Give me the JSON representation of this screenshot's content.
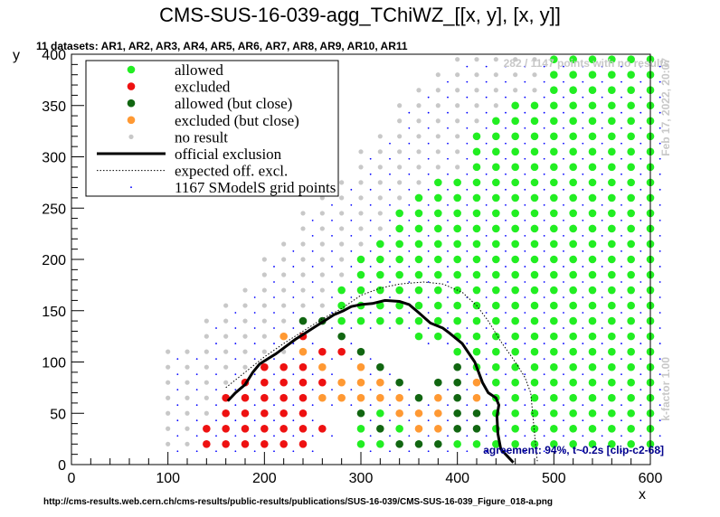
{
  "chart_data": {
    "type": "scatter",
    "title": "CMS-SUS-16-039-agg_TChiWZ_[[x, y], [x, y]]",
    "subtitle": "11 datasets: AR1, AR2, AR3, AR4, AR5, AR6, AR7, AR8, AR9, AR10, AR11",
    "xlabel": "x",
    "ylabel": "y",
    "xlim": [
      0,
      600
    ],
    "ylim": [
      0,
      400
    ],
    "xticks": [
      0,
      100,
      200,
      300,
      400,
      500,
      600
    ],
    "yticks": [
      0,
      50,
      100,
      150,
      200,
      250,
      300,
      350,
      400
    ],
    "legend_position": "top-left",
    "legend": [
      {
        "label": "allowed",
        "kind": "dot",
        "color": "#22ee22"
      },
      {
        "label": "excluded",
        "kind": "dot",
        "color": "#ee1111"
      },
      {
        "label": "allowed (but close)",
        "kind": "dot",
        "color": "#116611"
      },
      {
        "label": "excluded (but close)",
        "kind": "dot",
        "color": "#ff9933"
      },
      {
        "label": "no result",
        "kind": "smalldot",
        "color": "#c8c8c8"
      },
      {
        "label": "official exclusion",
        "kind": "line",
        "color": "#000000"
      },
      {
        "label": "expected off. excl.",
        "kind": "dotted",
        "color": "#000000"
      },
      {
        "label": "1167 SModelS grid points",
        "kind": "tinydot",
        "color": "#0000ff"
      }
    ],
    "annotations": {
      "no_results": "282 / 1147 points with no results",
      "date": "Feb 17, 2022, 20:07",
      "kfactor": "k-factor 1.00",
      "agreement": "agreement: 94%, t~0.2s [clip-c2-68]",
      "url": "http://cms-results.web.cern.ch/cms-results/public-results/publications/SUS-16-039/CMS-SUS-16-039_Figure_018-a.png"
    },
    "official_exclusion": [
      [
        162,
        62
      ],
      [
        170,
        70
      ],
      [
        180,
        78
      ],
      [
        188,
        90
      ],
      [
        195,
        98
      ],
      [
        205,
        104
      ],
      [
        212,
        108
      ],
      [
        222,
        115
      ],
      [
        232,
        122
      ],
      [
        242,
        128
      ],
      [
        252,
        134
      ],
      [
        262,
        140
      ],
      [
        272,
        146
      ],
      [
        282,
        150
      ],
      [
        290,
        154
      ],
      [
        300,
        156
      ],
      [
        312,
        157
      ],
      [
        325,
        160
      ],
      [
        340,
        159
      ],
      [
        350,
        156
      ],
      [
        360,
        148
      ],
      [
        372,
        138
      ],
      [
        385,
        133
      ],
      [
        392,
        128
      ],
      [
        405,
        118
      ],
      [
        418,
        100
      ],
      [
        426,
        80
      ],
      [
        432,
        70
      ],
      [
        440,
        65
      ],
      [
        443,
        58
      ],
      [
        441,
        47
      ],
      [
        442,
        30
      ],
      [
        445,
        15
      ],
      [
        452,
        8
      ],
      [
        458,
        2
      ]
    ],
    "expected_exclusion": [
      [
        160,
        75
      ],
      [
        180,
        90
      ],
      [
        200,
        105
      ],
      [
        220,
        118
      ],
      [
        240,
        130
      ],
      [
        260,
        142
      ],
      [
        280,
        152
      ],
      [
        300,
        165
      ],
      [
        320,
        172
      ],
      [
        340,
        176
      ],
      [
        365,
        178
      ],
      [
        385,
        176
      ],
      [
        405,
        168
      ],
      [
        420,
        155
      ],
      [
        432,
        140
      ],
      [
        445,
        120
      ],
      [
        460,
        100
      ],
      [
        470,
        85
      ],
      [
        476,
        70
      ],
      [
        478,
        50
      ],
      [
        480,
        30
      ],
      [
        482,
        10
      ],
      [
        483,
        2
      ]
    ],
    "rows": [
      {
        "y": 20,
        "allowed_min": 300,
        "allowed_max": 600,
        "excluded_min": 140,
        "excluded_max": 250,
        "nr_min": 100,
        "nr_max": 130
      },
      {
        "y": 35,
        "allowed_min": 300,
        "allowed_max": 600,
        "excluded_min": 140,
        "excluded_max": 260,
        "nr_min": 100,
        "nr_max": 130
      },
      {
        "y": 50,
        "allowed_min": 300,
        "allowed_max": 600,
        "excluded_min": 160,
        "excluded_max": 250,
        "nr_min": 100,
        "nr_max": 150
      },
      {
        "y": 65,
        "allowed_min": 300,
        "allowed_max": 600,
        "excluded_min": 160,
        "excluded_max": 250,
        "nr_min": 100,
        "nr_max": 150
      },
      {
        "y": 80,
        "allowed_min": 420,
        "allowed_max": 600,
        "excluded_min": 180,
        "excluded_max": 260,
        "nr_min": 100,
        "nr_max": 170
      },
      {
        "y": 95,
        "allowed_min": 420,
        "allowed_max": 600,
        "excluded_min": 200,
        "excluded_max": 260,
        "nr_min": 100,
        "nr_max": 190
      },
      {
        "y": 110,
        "allowed_min": 400,
        "allowed_max": 600,
        "excluded_min": 240,
        "excluded_max": 280,
        "nr_min": 100,
        "nr_max": 230
      },
      {
        "y": 125,
        "allowed_min": 360,
        "allowed_max": 600,
        "excluded_min": 240,
        "excluded_max": 240,
        "nr_min": 140,
        "nr_max": 220
      },
      {
        "y": 140,
        "allowed_min": 280,
        "allowed_max": 600,
        "excluded_min": null,
        "excluded_max": null,
        "nr_min": 140,
        "nr_max": 240
      },
      {
        "y": 155,
        "allowed_min": 280,
        "allowed_max": 600,
        "excluded_min": null,
        "excluded_max": null,
        "nr_min": 160,
        "nr_max": 260
      },
      {
        "y": 170,
        "allowed_min": 280,
        "allowed_max": 600,
        "excluded_min": null,
        "excluded_max": null,
        "nr_min": 180,
        "nr_max": 260
      },
      {
        "y": 185,
        "allowed_min": 300,
        "allowed_max": 600,
        "excluded_min": null,
        "excluded_max": null,
        "nr_min": 200,
        "nr_max": 280
      },
      {
        "y": 200,
        "allowed_min": 300,
        "allowed_max": 600,
        "excluded_min": null,
        "excluded_max": null,
        "nr_min": 200,
        "nr_max": 280
      },
      {
        "y": 215,
        "allowed_min": 320,
        "allowed_max": 600,
        "excluded_min": null,
        "excluded_max": null,
        "nr_min": 220,
        "nr_max": 300
      },
      {
        "y": 230,
        "allowed_min": 340,
        "allowed_max": 600,
        "excluded_min": null,
        "excluded_max": null,
        "nr_min": 240,
        "nr_max": 320
      },
      {
        "y": 245,
        "allowed_min": 340,
        "allowed_max": 600,
        "excluded_min": null,
        "excluded_max": null,
        "nr_min": 240,
        "nr_max": 320
      },
      {
        "y": 260,
        "allowed_min": 360,
        "allowed_max": 600,
        "excluded_min": null,
        "excluded_max": null,
        "nr_min": 260,
        "nr_max": 340
      },
      {
        "y": 275,
        "allowed_min": 380,
        "allowed_max": 600,
        "excluded_min": null,
        "excluded_max": null,
        "nr_min": 280,
        "nr_max": 360
      },
      {
        "y": 290,
        "allowed_min": 420,
        "allowed_max": 600,
        "excluded_min": null,
        "excluded_max": null,
        "nr_min": 300,
        "nr_max": 400
      },
      {
        "y": 305,
        "allowed_min": 420,
        "allowed_max": 600,
        "excluded_min": null,
        "excluded_max": null,
        "nr_min": 300,
        "nr_max": 400
      },
      {
        "y": 320,
        "allowed_min": 420,
        "allowed_max": 600,
        "excluded_min": null,
        "excluded_max": null,
        "nr_min": 320,
        "nr_max": 400
      },
      {
        "y": 335,
        "allowed_min": 440,
        "allowed_max": 600,
        "excluded_min": null,
        "excluded_max": null,
        "nr_min": 340,
        "nr_max": 420
      },
      {
        "y": 350,
        "allowed_min": 460,
        "allowed_max": 600,
        "excluded_min": null,
        "excluded_max": null,
        "nr_min": 340,
        "nr_max": 440
      },
      {
        "y": 365,
        "allowed_min": 500,
        "allowed_max": 600,
        "excluded_min": null,
        "excluded_max": null,
        "nr_min": 360,
        "nr_max": 480
      },
      {
        "y": 380,
        "allowed_min": 500,
        "allowed_max": 600,
        "excluded_min": null,
        "excluded_max": null,
        "nr_min": 380,
        "nr_max": 480
      },
      {
        "y": 395,
        "allowed_min": 500,
        "allowed_max": 600,
        "excluded_min": null,
        "excluded_max": null,
        "nr_min": 400,
        "nr_max": 480
      }
    ],
    "close_points": {
      "allowed_close": [
        [
          260,
          140
        ],
        [
          280,
          125
        ],
        [
          300,
          110
        ],
        [
          320,
          95
        ],
        [
          340,
          80
        ],
        [
          360,
          65
        ],
        [
          380,
          80
        ],
        [
          400,
          95
        ],
        [
          400,
          80
        ],
        [
          400,
          65
        ],
        [
          400,
          50
        ],
        [
          400,
          35
        ],
        [
          380,
          20
        ],
        [
          360,
          20
        ],
        [
          340,
          20
        ],
        [
          320,
          35
        ],
        [
          300,
          50
        ],
        [
          420,
          50
        ],
        [
          420,
          35
        ],
        [
          240,
          140
        ]
      ],
      "excluded_close": [
        [
          220,
          125
        ],
        [
          240,
          110
        ],
        [
          260,
          95
        ],
        [
          280,
          80
        ],
        [
          300,
          95
        ],
        [
          320,
          80
        ],
        [
          340,
          65
        ],
        [
          360,
          50
        ],
        [
          380,
          65
        ],
        [
          380,
          50
        ],
        [
          420,
          65
        ],
        [
          420,
          80
        ],
        [
          300,
          65
        ],
        [
          320,
          65
        ],
        [
          340,
          50
        ],
        [
          360,
          35
        ],
        [
          380,
          35
        ],
        [
          260,
          65
        ],
        [
          280,
          65
        ],
        [
          300,
          80
        ]
      ]
    }
  }
}
